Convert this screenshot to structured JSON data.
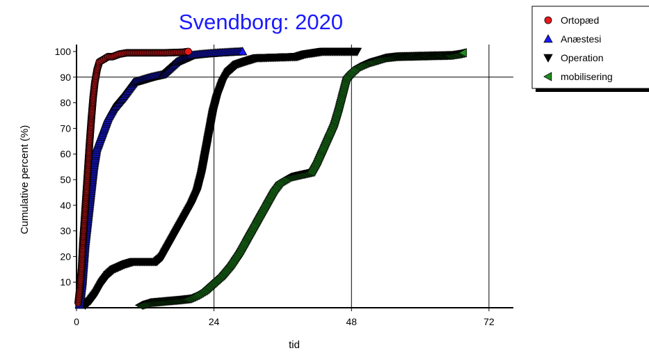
{
  "chart_data": {
    "type": "scatter",
    "title": "Svendborg: 2020",
    "xlabel": "tid",
    "ylabel": "Cumulative percent (%)",
    "xlim": [
      0,
      75
    ],
    "ylim": [
      0,
      102
    ],
    "xticks": [
      "0",
      "24",
      "48",
      "72"
    ],
    "xtick_values": [
      0,
      24,
      48,
      72
    ],
    "yticks": [
      "10",
      "20",
      "30",
      "40",
      "50",
      "60",
      "70",
      "80",
      "90",
      "100"
    ],
    "ytick_values": [
      10,
      20,
      30,
      40,
      50,
      60,
      70,
      80,
      90,
      100
    ],
    "grid_x": [
      24,
      48,
      72
    ],
    "grid_y": [
      90
    ],
    "legend_position": "top-right outside",
    "series": [
      {
        "name": "Ortopæd",
        "marker": "circle",
        "color": "#e8191c",
        "points": [
          [
            0.3,
            2
          ],
          [
            0.6,
            8
          ],
          [
            0.9,
            16
          ],
          [
            1.1,
            25
          ],
          [
            1.4,
            35
          ],
          [
            1.7,
            45
          ],
          [
            2.0,
            55
          ],
          [
            2.3,
            65
          ],
          [
            2.6,
            74
          ],
          [
            2.9,
            82
          ],
          [
            3.2,
            88
          ],
          [
            3.6,
            93
          ],
          [
            4.0,
            96
          ],
          [
            4.8,
            97
          ],
          [
            5.5,
            98
          ],
          [
            6.3,
            98
          ],
          [
            7.5,
            99
          ],
          [
            8.8,
            99.5
          ],
          [
            15.5,
            99.5
          ],
          [
            18.5,
            99.7
          ],
          [
            19.5,
            100
          ]
        ]
      },
      {
        "name": "Anæstesi",
        "marker": "triangle-up",
        "color": "#1a1aff",
        "points": [
          [
            0.5,
            1
          ],
          [
            1.0,
            10
          ],
          [
            1.5,
            25
          ],
          [
            2.0,
            35
          ],
          [
            2.5,
            45
          ],
          [
            3.0,
            55
          ],
          [
            3.5,
            62
          ],
          [
            4.5,
            68
          ],
          [
            5.5,
            74
          ],
          [
            6.5,
            78
          ],
          [
            8.0,
            82
          ],
          [
            9.0,
            85
          ],
          [
            10.0,
            88
          ],
          [
            11.5,
            89
          ],
          [
            13.0,
            90
          ],
          [
            15.0,
            91
          ],
          [
            16.5,
            94
          ],
          [
            17.5,
            96
          ],
          [
            18.5,
            97
          ],
          [
            20.0,
            98.5
          ],
          [
            22.0,
            99
          ],
          [
            25.0,
            99.5
          ],
          [
            29.0,
            100
          ]
        ]
      },
      {
        "name": "Operation",
        "marker": "triangle-down",
        "color": "#000000",
        "points": [
          [
            1.5,
            1
          ],
          [
            2.5,
            3
          ],
          [
            3.5,
            6
          ],
          [
            4.5,
            10
          ],
          [
            5.5,
            13
          ],
          [
            6.5,
            15
          ],
          [
            7.5,
            16
          ],
          [
            8.5,
            17
          ],
          [
            10.0,
            18
          ],
          [
            14.0,
            18
          ],
          [
            15.0,
            20
          ],
          [
            16.0,
            24
          ],
          [
            17.0,
            28
          ],
          [
            18.0,
            32
          ],
          [
            19.0,
            36
          ],
          [
            20.0,
            40
          ],
          [
            21.0,
            45
          ],
          [
            21.8,
            52
          ],
          [
            22.3,
            58
          ],
          [
            22.8,
            64
          ],
          [
            23.3,
            70
          ],
          [
            23.8,
            76
          ],
          [
            24.5,
            82
          ],
          [
            25.5,
            88
          ],
          [
            26.5,
            92
          ],
          [
            28.0,
            95
          ],
          [
            30.0,
            96.5
          ],
          [
            31.5,
            97.5
          ],
          [
            38.5,
            98
          ],
          [
            40.0,
            99
          ],
          [
            43.0,
            100
          ],
          [
            49.0,
            100
          ]
        ]
      },
      {
        "name": "mobilisering",
        "marker": "triangle-left",
        "color": "#1f8c1f",
        "points": [
          [
            11.0,
            1
          ],
          [
            12.5,
            2
          ],
          [
            15.0,
            2.5
          ],
          [
            17.5,
            3
          ],
          [
            19.5,
            3.5
          ],
          [
            21.0,
            5
          ],
          [
            22.5,
            7
          ],
          [
            24.0,
            10
          ],
          [
            25.5,
            13
          ],
          [
            27.0,
            17
          ],
          [
            28.5,
            22
          ],
          [
            29.5,
            26
          ],
          [
            30.5,
            30
          ],
          [
            31.5,
            34
          ],
          [
            32.5,
            38
          ],
          [
            33.5,
            42
          ],
          [
            34.5,
            46
          ],
          [
            35.5,
            49
          ],
          [
            37.0,
            51
          ],
          [
            39.0,
            52
          ],
          [
            41.0,
            53
          ],
          [
            42.0,
            57
          ],
          [
            43.0,
            62
          ],
          [
            44.0,
            67
          ],
          [
            45.0,
            72
          ],
          [
            45.8,
            78
          ],
          [
            46.5,
            84
          ],
          [
            47.2,
            90
          ],
          [
            48.0,
            92
          ],
          [
            49.0,
            94
          ],
          [
            50.5,
            95.5
          ],
          [
            52.0,
            96.5
          ],
          [
            53.5,
            97.5
          ],
          [
            55.5,
            98
          ],
          [
            65.0,
            98.5
          ],
          [
            66.5,
            99
          ],
          [
            67.5,
            99.5
          ]
        ]
      }
    ]
  }
}
